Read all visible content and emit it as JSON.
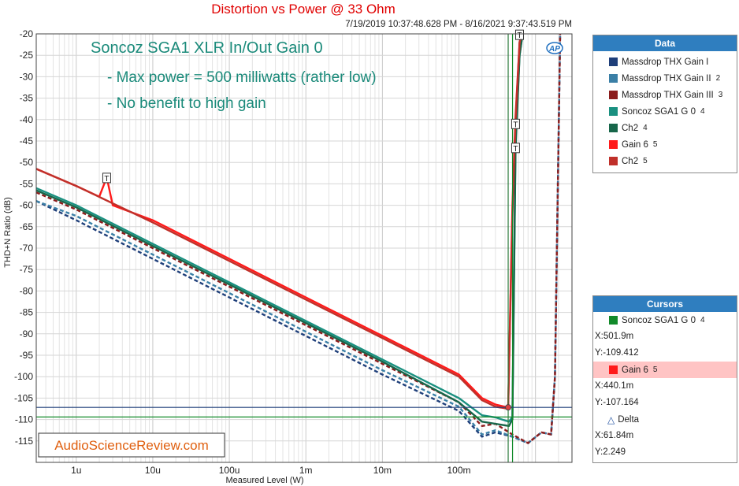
{
  "chart_data": {
    "type": "line",
    "title": "Distortion vs Power @ 33 Ohm",
    "subtitle": "7/19/2019 10:37:48.628 PM - 8/16/2021 9:37:43.519 PM",
    "xlabel": "Measured Level (W)",
    "ylabel": "THD+N Ratio (dB)",
    "xscale": "log",
    "xlim": [
      3e-07,
      3
    ],
    "ylim": [
      -120,
      -20
    ],
    "y_ticks": [
      -20,
      -25,
      -30,
      -35,
      -40,
      -45,
      -50,
      -55,
      -60,
      -65,
      -70,
      -75,
      -80,
      -85,
      -90,
      -95,
      -100,
      -105,
      -110,
      -115
    ],
    "x_ticks": [
      {
        "v": 1e-06,
        "label": "1u"
      },
      {
        "v": 1e-05,
        "label": "10u"
      },
      {
        "v": 0.0001,
        "label": "100u"
      },
      {
        "v": 0.001,
        "label": "1m"
      },
      {
        "v": 0.01,
        "label": "10m"
      },
      {
        "v": 0.1,
        "label": "100m"
      }
    ],
    "grid": true,
    "annotations": [
      "Soncoz SGA1 XLR In/Out Gain 0",
      "- Max power = 500 milliwatts (rather low)",
      "- No benefit to high gain"
    ],
    "watermark": "AudioScienceReview.com",
    "series": [
      {
        "name": "Massdrop THX Gain I",
        "color": "#1f3f7a",
        "dash": true,
        "points": [
          [
            3e-07,
            -59
          ],
          [
            1e-06,
            -63.5
          ],
          [
            1e-05,
            -72.5
          ],
          [
            0.0001,
            -81.5
          ],
          [
            0.001,
            -90.5
          ],
          [
            0.01,
            -99.5
          ],
          [
            0.1,
            -108
          ],
          [
            0.2,
            -114
          ],
          [
            0.3,
            -113
          ],
          [
            0.5,
            -114
          ],
          [
            0.8,
            -115.5
          ],
          [
            1.2,
            -113
          ],
          [
            1.6,
            -113.5
          ],
          [
            1.8,
            -100
          ],
          [
            2.1,
            -20
          ]
        ]
      },
      {
        "name": "Massdrop THX Gain II",
        "suffix": "2",
        "color": "#3a7fa6",
        "dash": true,
        "points": [
          [
            3e-07,
            -59
          ],
          [
            1e-06,
            -62.5
          ],
          [
            1e-05,
            -71.5
          ],
          [
            0.0001,
            -80.5
          ],
          [
            0.001,
            -89.5
          ],
          [
            0.01,
            -98.5
          ],
          [
            0.1,
            -107
          ],
          [
            0.2,
            -113.5
          ],
          [
            0.3,
            -112.5
          ],
          [
            0.5,
            -114
          ],
          [
            0.8,
            -115.5
          ],
          [
            1.2,
            -113
          ],
          [
            1.6,
            -113.5
          ],
          [
            1.8,
            -100
          ],
          [
            2.1,
            -20
          ]
        ]
      },
      {
        "name": "Massdrop THX Gain III",
        "suffix": "3",
        "color": "#8b1c1c",
        "dash": true,
        "points": [
          [
            3e-07,
            -57
          ],
          [
            1e-06,
            -61
          ],
          [
            1e-05,
            -70
          ],
          [
            0.0001,
            -79
          ],
          [
            0.001,
            -88
          ],
          [
            0.01,
            -97
          ],
          [
            0.1,
            -106
          ],
          [
            0.2,
            -111.5
          ],
          [
            0.3,
            -111
          ],
          [
            0.5,
            -113.5
          ],
          [
            0.8,
            -115.5
          ],
          [
            1.2,
            -113
          ],
          [
            1.6,
            -113.5
          ],
          [
            1.8,
            -100
          ],
          [
            2.1,
            -20
          ]
        ]
      },
      {
        "name": "Soncoz SGA1 G 0",
        "suffix": "4",
        "color": "#1a9080",
        "dash": false,
        "points": [
          [
            3e-07,
            -56
          ],
          [
            1e-06,
            -60
          ],
          [
            1e-05,
            -69
          ],
          [
            0.0001,
            -78
          ],
          [
            0.001,
            -87
          ],
          [
            0.01,
            -96
          ],
          [
            0.1,
            -105
          ],
          [
            0.2,
            -109
          ],
          [
            0.3,
            -109.5
          ],
          [
            0.45,
            -110.5
          ],
          [
            0.5,
            -109.4
          ],
          [
            0.55,
            -45
          ],
          [
            0.62,
            -25
          ],
          [
            0.68,
            -20
          ]
        ]
      },
      {
        "name": "Ch2",
        "suffix": "4",
        "color": "#17664a",
        "dash": false,
        "points": [
          [
            3e-07,
            -56.5
          ],
          [
            1e-06,
            -60.5
          ],
          [
            1e-05,
            -69.5
          ],
          [
            0.0001,
            -78.5
          ],
          [
            0.001,
            -87.5
          ],
          [
            0.01,
            -96.5
          ],
          [
            0.1,
            -106
          ],
          [
            0.2,
            -110.5
          ],
          [
            0.3,
            -111
          ],
          [
            0.45,
            -111.5
          ],
          [
            0.5,
            -110
          ],
          [
            0.55,
            -47
          ],
          [
            0.62,
            -25
          ],
          [
            0.68,
            -20
          ]
        ]
      },
      {
        "name": "Gain 6",
        "suffix": "5",
        "color": "#ff1a1a",
        "dash": false,
        "points": [
          [
            3e-07,
            -51.5
          ],
          [
            1e-06,
            -55.5
          ],
          [
            2e-06,
            -58
          ],
          [
            2.5e-06,
            -53.5
          ],
          [
            3e-06,
            -60
          ],
          [
            1e-05,
            -63.5
          ],
          [
            0.0001,
            -72.5
          ],
          [
            0.001,
            -81.5
          ],
          [
            0.01,
            -90.5
          ],
          [
            0.1,
            -99.5
          ],
          [
            0.2,
            -105
          ],
          [
            0.3,
            -106.5
          ],
          [
            0.44,
            -107.2
          ],
          [
            0.5,
            -60
          ],
          [
            0.55,
            -39
          ],
          [
            0.62,
            -22
          ],
          [
            0.66,
            -20
          ]
        ]
      },
      {
        "name": "Ch2",
        "suffix": "5",
        "color": "#c0302a",
        "dash": false,
        "points": [
          [
            3e-07,
            -51.5
          ],
          [
            1e-06,
            -55.5
          ],
          [
            1e-05,
            -64
          ],
          [
            0.0001,
            -73
          ],
          [
            0.001,
            -82
          ],
          [
            0.01,
            -91
          ],
          [
            0.1,
            -100
          ],
          [
            0.2,
            -105.5
          ],
          [
            0.3,
            -107
          ],
          [
            0.44,
            -107.5
          ],
          [
            0.5,
            -62
          ],
          [
            0.55,
            -40
          ],
          [
            0.62,
            -22
          ],
          [
            0.66,
            -20
          ]
        ]
      }
    ],
    "cursors": {
      "x1": 0.5019,
      "y1": -109.412,
      "x2": 0.4401,
      "y2": -107.164
    }
  },
  "legend": {
    "title": "Data"
  },
  "cursors_panel": {
    "title": "Cursors",
    "c1": {
      "name": "Soncoz SGA1 G 0",
      "suffix": "4",
      "color": "#128a2a",
      "x": "X:501.9m",
      "y": "Y:-109.412"
    },
    "c2": {
      "name": "Gain 6",
      "suffix": "5",
      "color": "#ff1a1a",
      "x": "X:440.1m",
      "y": "Y:-107.164"
    },
    "delta": {
      "name": "Delta",
      "x": "X:61.84m",
      "y": "Y:2.249"
    }
  },
  "logo_text": "AP",
  "cursor_markers": [
    "T",
    "T",
    "T",
    "T"
  ]
}
